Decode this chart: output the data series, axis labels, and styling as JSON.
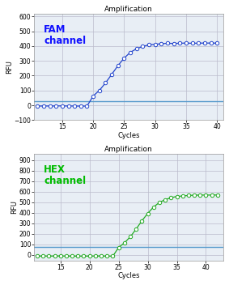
{
  "fam": {
    "title": "Amplification",
    "label": "FAM\nchannel",
    "label_color": "#1111FF",
    "line_color": "#2244CC",
    "marker_color": "#2244CC",
    "threshold_color": "#5599CC",
    "threshold_y": 28,
    "xlim": [
      10.5,
      41
    ],
    "ylim": [
      -100,
      620
    ],
    "yticks": [
      -100,
      0,
      100,
      200,
      300,
      400,
      500,
      600
    ],
    "xticks": [
      15,
      20,
      25,
      30,
      35,
      40
    ],
    "xlabel": "Cycles",
    "ylabel": "RFU",
    "sigmoid_L": 420,
    "sigmoid_k": 0.58,
    "sigmoid_x0": 23.0,
    "x_start": 11,
    "x_end": 40,
    "baseline_val": -5,
    "baseline_end": 19
  },
  "hex": {
    "title": "Amplification",
    "label": "HEX\nchannel",
    "label_color": "#00BB00",
    "line_color": "#22AA22",
    "marker_color": "#22AA22",
    "threshold_color": "#5599CC",
    "threshold_y": 75,
    "xlim": [
      10.5,
      43
    ],
    "ylim": [
      -50,
      960
    ],
    "yticks": [
      0,
      100,
      200,
      300,
      400,
      500,
      600,
      700,
      800,
      900
    ],
    "xticks": [
      15,
      20,
      25,
      30,
      35,
      40
    ],
    "xlabel": "Cycles",
    "ylabel": "RFU",
    "sigmoid_L": 570,
    "sigmoid_k": 0.55,
    "sigmoid_x0": 28.5,
    "x_start": 11,
    "x_end": 42,
    "baseline_val": -10,
    "baseline_end": 24
  },
  "fig_bg": "#FFFFFF",
  "plot_bg": "#E8EEF5",
  "grid_color": "#BBBBCC"
}
